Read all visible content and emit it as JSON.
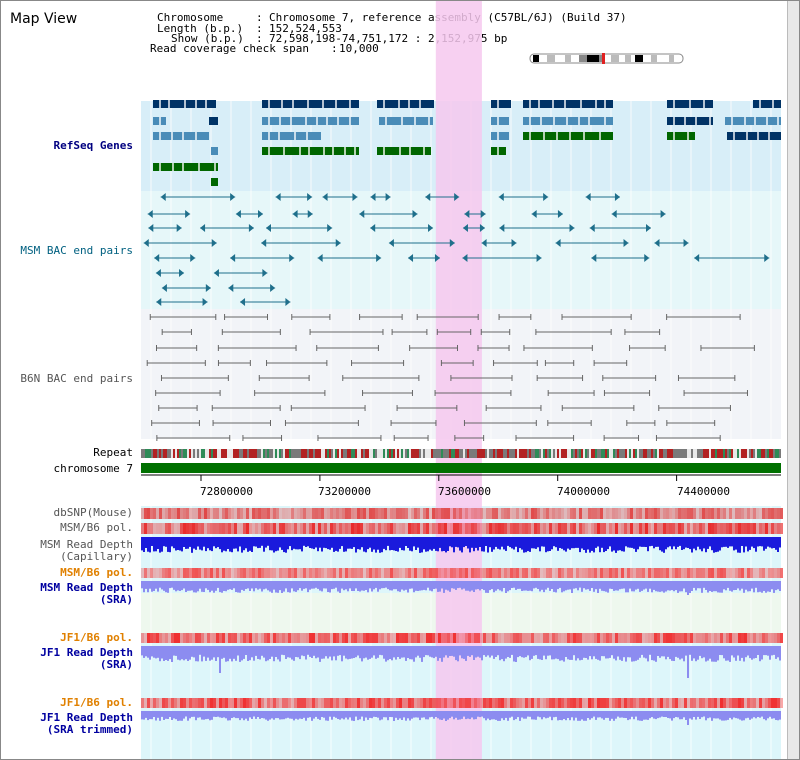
{
  "window": {
    "title": "Map View"
  },
  "info": {
    "chromosome_key": "Chromosome",
    "chromosome_value": "Chromosome 7, reference assembly (C57BL/6J) (Build 37)",
    "length_key": "Length (b.p.)",
    "length_value": "152,524,553",
    "show_key": "Show (b.p.)",
    "show_value": "72,598,198-74,751,172 : 2,152,975 bp",
    "coverage_key": "Read coverage check span",
    "coverage_value": "10,000"
  },
  "tracks": {
    "refseq": "RefSeq Genes",
    "msm_bac": "MSM BAC end pairs",
    "b6n_bac": "B6N BAC end pairs",
    "repeat": "Repeat",
    "chromosome": "chromosome 7",
    "dbsnp": "dbSNP(Mouse)",
    "msm_b6_pol_1": "MSM/B6 pol.",
    "msm_depth_cap_1": "MSM Read Depth",
    "msm_depth_cap_2": "(Capillary)",
    "msm_b6_pol_2": "MSM/B6 pol.",
    "msm_depth_sra_1": "MSM Read Depth",
    "msm_depth_sra_2": "(SRA)",
    "jf1_b6_pol_1": "JF1/B6 pol.",
    "jf1_depth_sra_1": "JF1 Read Depth",
    "jf1_depth_sra_2": "(SRA)",
    "jf1_b6_pol_2": "JF1/B6 pol.",
    "jf1_depth_trim_1": "JF1 Read Depth",
    "jf1_depth_trim_2": "(SRA trimmed)"
  },
  "axis": {
    "ticks": [
      "72800000",
      "73200000",
      "73600000",
      "74000000",
      "74400000"
    ],
    "tick_values": [
      72800000,
      73200000,
      73600000,
      74000000,
      74400000
    ],
    "range": [
      72598198,
      74751172
    ]
  },
  "highlight": {
    "start": 73590000,
    "end": 73745000
  },
  "colors": {
    "refseq_bg": "#d8eef8",
    "bac_bg": "#e6f7f9",
    "navy_gene": "#003366",
    "steel_gene": "#4a8cb8",
    "green_gene": "#006600",
    "msm_line": "#1f6f8b",
    "b6n_line": "#666666",
    "highlight": "#f6c8ee",
    "chromosome": "#007000",
    "depth_cap": "#1a1adc",
    "depth_sra": "#8c8cf0"
  }
}
